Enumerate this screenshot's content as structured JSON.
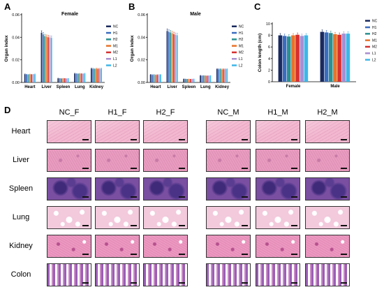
{
  "panels": {
    "A": "A",
    "B": "B",
    "C": "C",
    "D": "D"
  },
  "chart_data": [
    {
      "type": "bar",
      "panel": "A",
      "title": "Female",
      "ylabel": "Organ index",
      "ylim": [
        0,
        0.06
      ],
      "yticks": [
        "0.00",
        "0.02",
        "0.04",
        "0.06"
      ],
      "categories": [
        "Heart",
        "Liver",
        "Spleen",
        "Lung",
        "Kidney"
      ],
      "series": [
        {
          "name": "NC",
          "color": "#1a2a5e",
          "values": [
            0.0072,
            0.044,
            0.0036,
            0.0078,
            0.0122
          ]
        },
        {
          "name": "H1",
          "color": "#3a6cc0",
          "values": [
            0.007,
            0.0425,
            0.0034,
            0.0076,
            0.012
          ]
        },
        {
          "name": "H2",
          "color": "#2a9090",
          "values": [
            0.0068,
            0.041,
            0.0033,
            0.0075,
            0.0118
          ]
        },
        {
          "name": "M1",
          "color": "#e8732a",
          "values": [
            0.0071,
            0.0405,
            0.0035,
            0.0077,
            0.0121
          ]
        },
        {
          "name": "M2",
          "color": "#d62f2f",
          "values": [
            0.0069,
            0.04,
            0.0034,
            0.0076,
            0.0119
          ]
        },
        {
          "name": "L1",
          "color": "#a98fd0",
          "values": [
            0.007,
            0.0398,
            0.0033,
            0.0075,
            0.012
          ]
        },
        {
          "name": "L2",
          "color": "#3fb7e8",
          "values": [
            0.0072,
            0.0395,
            0.0034,
            0.0078,
            0.0122
          ]
        }
      ]
    },
    {
      "type": "bar",
      "panel": "B",
      "title": "Male",
      "ylabel": "Organ index",
      "ylim": [
        0,
        0.06
      ],
      "yticks": [
        "0.00",
        "0.02",
        "0.04",
        "0.06"
      ],
      "categories": [
        "Heart",
        "Liver",
        "Spleen",
        "Lung",
        "Kidney"
      ],
      "series": [
        {
          "name": "NC",
          "color": "#1a2a5e",
          "values": [
            0.0068,
            0.0455,
            0.003,
            0.006,
            0.0118
          ]
        },
        {
          "name": "H1",
          "color": "#3a6cc0",
          "values": [
            0.0066,
            0.0448,
            0.0029,
            0.0058,
            0.0116
          ]
        },
        {
          "name": "H2",
          "color": "#2a9090",
          "values": [
            0.0067,
            0.0442,
            0.0028,
            0.0059,
            0.0117
          ]
        },
        {
          "name": "M1",
          "color": "#e8732a",
          "values": [
            0.0065,
            0.0435,
            0.0029,
            0.0058,
            0.0115
          ]
        },
        {
          "name": "M2",
          "color": "#d62f2f",
          "values": [
            0.0066,
            0.0428,
            0.0028,
            0.0057,
            0.0116
          ]
        },
        {
          "name": "L1",
          "color": "#a98fd0",
          "values": [
            0.0067,
            0.0422,
            0.0029,
            0.0058,
            0.0117
          ]
        },
        {
          "name": "L2",
          "color": "#3fb7e8",
          "values": [
            0.0068,
            0.0418,
            0.003,
            0.0059,
            0.0118
          ]
        }
      ]
    },
    {
      "type": "bar",
      "panel": "C",
      "title": "",
      "ylabel": "Colon length (cm)",
      "ylim": [
        0,
        10
      ],
      "yticks": [
        "0",
        "2",
        "4",
        "6",
        "8",
        "10"
      ],
      "categories": [
        "Female",
        "Male"
      ],
      "series": [
        {
          "name": "NC",
          "color": "#1a2a5e",
          "values": [
            8.0,
            8.6
          ]
        },
        {
          "name": "H1",
          "color": "#3a6cc0",
          "values": [
            7.9,
            8.5
          ]
        },
        {
          "name": "H2",
          "color": "#2a9090",
          "values": [
            7.8,
            8.4
          ]
        },
        {
          "name": "M1",
          "color": "#e8732a",
          "values": [
            8.0,
            8.2
          ]
        },
        {
          "name": "M2",
          "color": "#d62f2f",
          "values": [
            8.1,
            8.1
          ]
        },
        {
          "name": "L1",
          "color": "#a98fd0",
          "values": [
            7.9,
            8.3
          ]
        },
        {
          "name": "L2",
          "color": "#3fb7e8",
          "values": [
            8.0,
            8.3
          ]
        }
      ]
    }
  ],
  "histology": {
    "columns": [
      "NC_F",
      "H1_F",
      "H2_F",
      "NC_M",
      "H1_M",
      "H2_M"
    ],
    "rows": [
      {
        "name": "Heart",
        "tissue": "heart"
      },
      {
        "name": "Liver",
        "tissue": "liver"
      },
      {
        "name": "Spleen",
        "tissue": "spleen"
      },
      {
        "name": "Lung",
        "tissue": "lung"
      },
      {
        "name": "Kidney",
        "tissue": "kidney"
      },
      {
        "name": "Colon",
        "tissue": "colon"
      }
    ],
    "tissue_colors": {
      "heart": "#f2b8cf",
      "liver": "#e99cc0",
      "spleen": "#7a4fa2",
      "lung": "#f3c9dc",
      "kidney": "#e58fb9",
      "colon": "#f1d4e4"
    }
  }
}
